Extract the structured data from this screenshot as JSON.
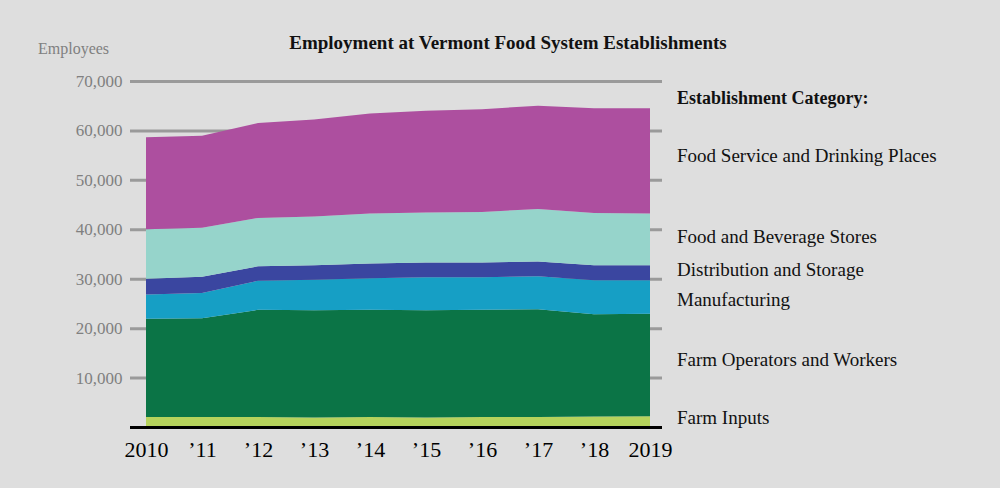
{
  "chart_data": {
    "type": "area",
    "title": "Employment at Vermont Food System Establishments",
    "ylabel": "Employees",
    "legend_title": "Establishment Category:",
    "categories": [
      "2010",
      "’11",
      "’12",
      "’13",
      "’14",
      "’15",
      "’16",
      "’17",
      "’18",
      "2019"
    ],
    "series": [
      {
        "name": "Farm Inputs",
        "color": "#b6d35c",
        "values": [
          2000,
          2000,
          2000,
          1900,
          2000,
          1900,
          2000,
          2000,
          2100,
          2200
        ]
      },
      {
        "name": "Farm Operators and Workers",
        "color": "#0b7446",
        "values": [
          19900,
          20000,
          21700,
          21700,
          21700,
          21700,
          21700,
          21800,
          20700,
          20700
        ]
      },
      {
        "name": "Manufacturing",
        "color": "#169fc5",
        "values": [
          4900,
          5100,
          5900,
          6200,
          6400,
          6700,
          6600,
          6700,
          6900,
          6800
        ]
      },
      {
        "name": "Distribution and Storage",
        "color": "#3a46a0",
        "values": [
          3200,
          3300,
          2900,
          2900,
          3000,
          3000,
          3000,
          3000,
          3000,
          3000
        ]
      },
      {
        "name": "Food and Beverage Stores",
        "color": "#96d4cb",
        "values": [
          10000,
          9900,
          9800,
          9900,
          10100,
          10100,
          10200,
          10600,
          10600,
          10500
        ]
      },
      {
        "name": "Food Service and Drinking Places",
        "color": "#ad4f9f",
        "values": [
          18600,
          18600,
          19200,
          19600,
          20200,
          20600,
          20800,
          20900,
          21200,
          21300
        ]
      }
    ],
    "ylim": [
      0,
      70000
    ],
    "yticks": [
      {
        "value": 10000,
        "label": "10,000"
      },
      {
        "value": 20000,
        "label": "20,000"
      },
      {
        "value": 30000,
        "label": "30,000"
      },
      {
        "value": 40000,
        "label": "40,000"
      },
      {
        "value": 50000,
        "label": "50,000"
      },
      {
        "value": 60000,
        "label": "60,000"
      },
      {
        "value": 70000,
        "label": "70,000"
      }
    ],
    "stacked": true,
    "grid": true,
    "legend": "right"
  }
}
